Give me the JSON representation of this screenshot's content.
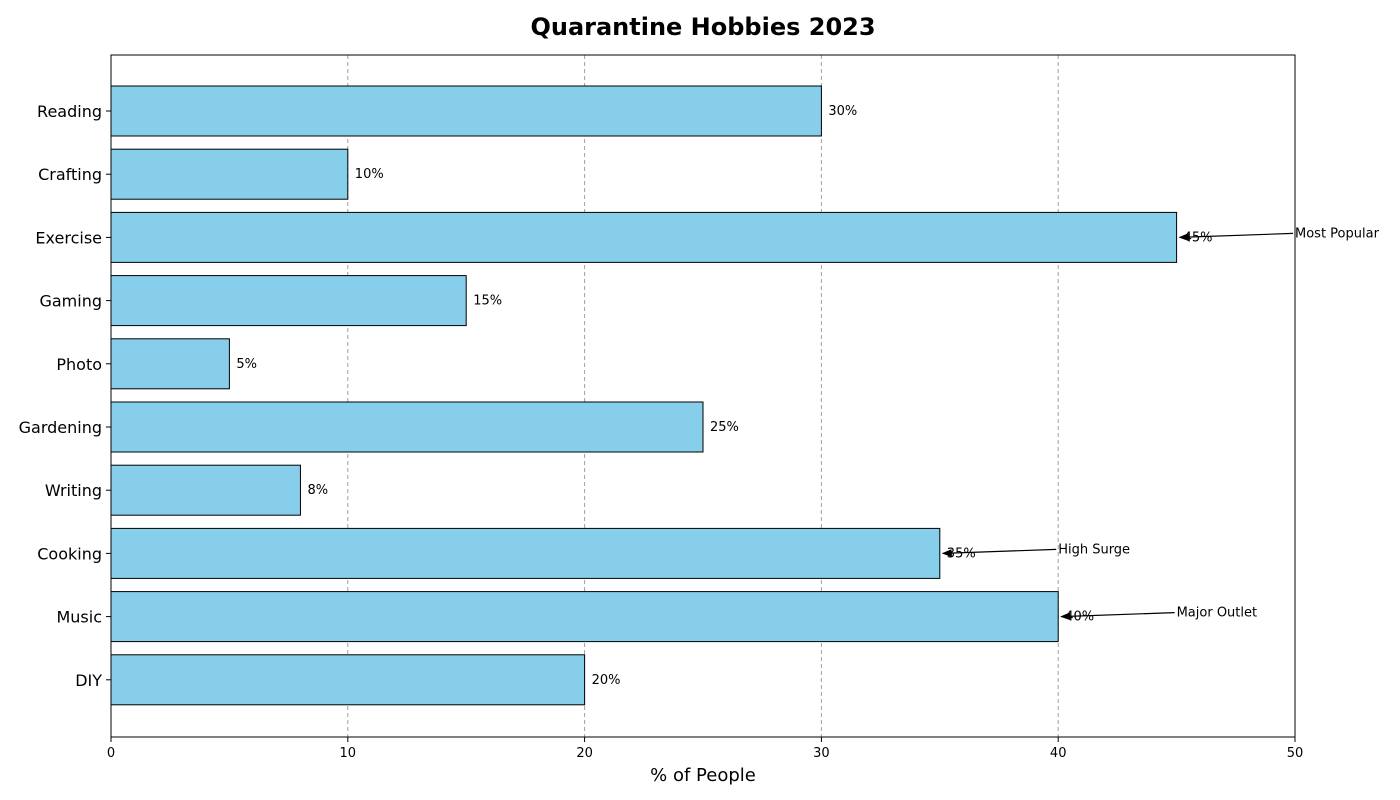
{
  "chart_data": {
    "type": "bar",
    "orientation": "horizontal",
    "title": "Quarantine Hobbies 2023",
    "xlabel": "% of People",
    "ylabel": "",
    "xlim": [
      0,
      50
    ],
    "xticks": [
      0,
      10,
      20,
      30,
      40,
      50
    ],
    "grid": "x-dashed",
    "categories": [
      "Reading",
      "Crafting",
      "Exercise",
      "Gaming",
      "Photo",
      "Gardening",
      "Writing",
      "Cooking",
      "Music",
      "DIY"
    ],
    "values": [
      30,
      10,
      45,
      15,
      5,
      25,
      8,
      35,
      40,
      20
    ],
    "value_labels": [
      "30%",
      "10%",
      "45%",
      "15%",
      "5%",
      "25%",
      "8%",
      "35%",
      "40%",
      "20%"
    ],
    "annotations": [
      {
        "category": "Exercise",
        "text": "Most Popular",
        "value": 45
      },
      {
        "category": "Cooking",
        "text": "High Surge",
        "value": 35
      },
      {
        "category": "Music",
        "text": "Major Outlet",
        "value": 40
      }
    ],
    "colors": {
      "bar": "#87ceeb",
      "edge": "#000000",
      "grid": "#a0a0a0"
    }
  }
}
